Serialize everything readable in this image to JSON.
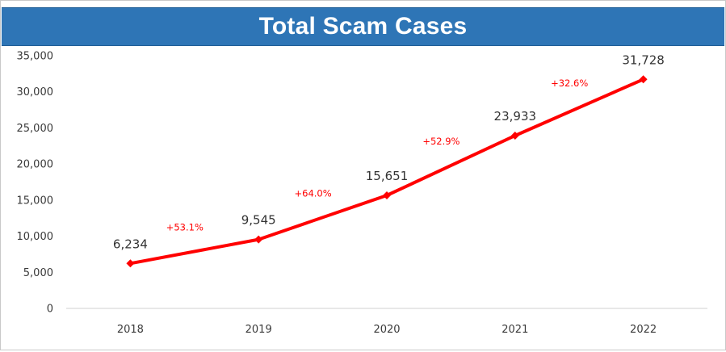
{
  "chart_data": {
    "type": "line",
    "title": "Total Scam Cases",
    "xlabel": "",
    "ylabel": "",
    "x": [
      "2018",
      "2019",
      "2020",
      "2021",
      "2022"
    ],
    "ylim": [
      0,
      35000
    ],
    "yticks": [
      0,
      5000,
      10000,
      15000,
      20000,
      25000,
      30000,
      35000
    ],
    "ytick_labels": [
      "0",
      "5,000",
      "10,000",
      "15,000",
      "20,000",
      "25,000",
      "30,000",
      "35,000"
    ],
    "grid": false,
    "legend": "none",
    "series": [
      {
        "values": [
          6234,
          9545,
          15651,
          23933,
          31728
        ],
        "data_labels": [
          "6,234",
          "9,545",
          "15,651",
          "23,933",
          "31,728"
        ],
        "color": "#ff0000"
      }
    ],
    "annotations": [
      {
        "between": [
          "2018",
          "2019"
        ],
        "text": "+53.1%"
      },
      {
        "between": [
          "2019",
          "2020"
        ],
        "text": "+64.0%"
      },
      {
        "between": [
          "2020",
          "2021"
        ],
        "text": "+52.9%"
      },
      {
        "between": [
          "2021",
          "2022"
        ],
        "text": "+32.6%"
      }
    ],
    "colors": {
      "title_background": "#2e75b6",
      "title_text": "#ffffff",
      "line": "#ff0000",
      "annotation": "#ff0000"
    }
  }
}
